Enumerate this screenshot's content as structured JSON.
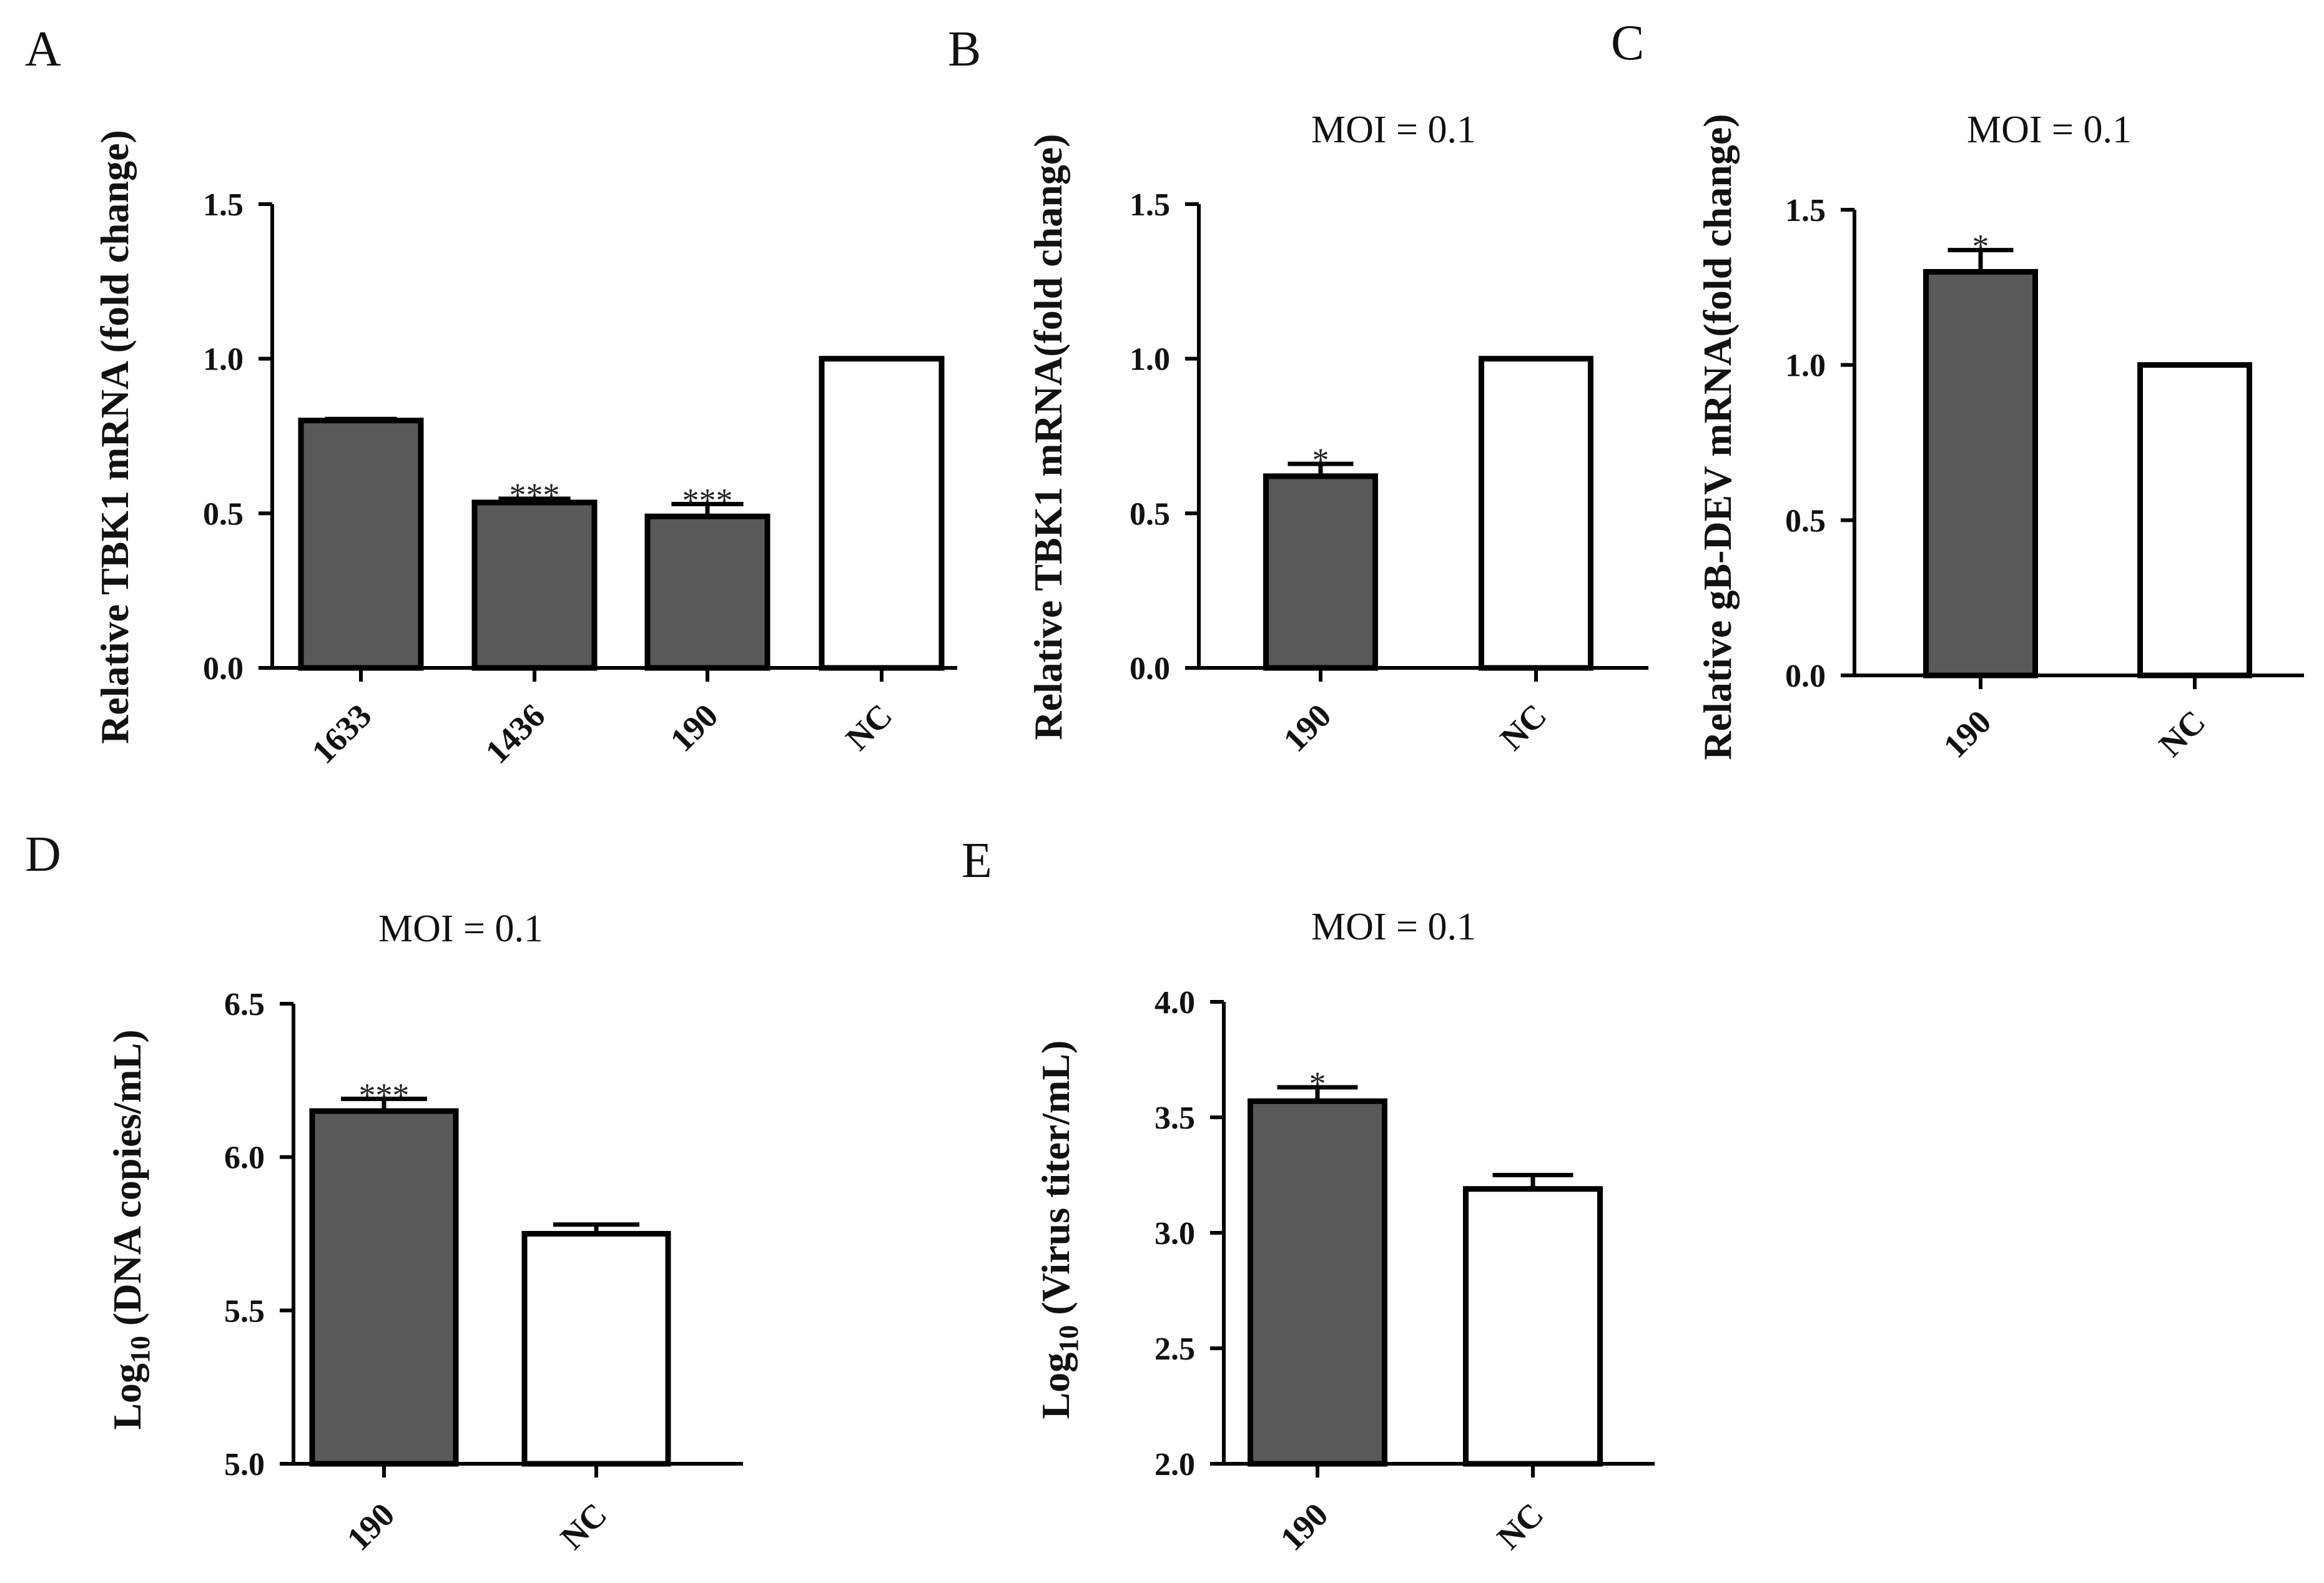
{
  "colors": {
    "filled": "#595959",
    "open": "#ffffff",
    "stroke": "#000000"
  },
  "chart_data": [
    {
      "panel": "A",
      "type": "bar",
      "title": "",
      "ylabel": "Relative TBK1 mRNA (fold change)",
      "ylim": [
        0,
        1.5
      ],
      "yticks": [
        "0.0",
        "0.5",
        "1.0",
        "1.5"
      ],
      "categories": [
        "1633",
        "1436",
        "190",
        "NC"
      ],
      "values": [
        0.8,
        0.535,
        0.49,
        1.0
      ],
      "errors": [
        0.005,
        0.012,
        0.04,
        0
      ],
      "fills": [
        "filled",
        "filled",
        "filled",
        "open"
      ],
      "annotations": [
        "",
        "***",
        "***",
        ""
      ]
    },
    {
      "panel": "B",
      "type": "bar",
      "title": "MOI = 0.1",
      "ylabel": "Relative TBK1 mRNA(fold change)",
      "ylim": [
        0,
        1.5
      ],
      "yticks": [
        "0.0",
        "0.5",
        "1.0",
        "1.5"
      ],
      "categories": [
        "190",
        "NC"
      ],
      "values": [
        0.62,
        1.0
      ],
      "errors": [
        0.04,
        0
      ],
      "fills": [
        "filled",
        "open"
      ],
      "annotations": [
        "*",
        ""
      ]
    },
    {
      "panel": "C",
      "type": "bar",
      "title": "MOI = 0.1",
      "ylabel": "Relative gB-DEV mRNA(fold change)",
      "ylim": [
        0,
        1.5
      ],
      "yticks": [
        "0.0",
        "0.5",
        "1.0",
        "1.5"
      ],
      "categories": [
        "190",
        "NC"
      ],
      "values": [
        1.3,
        1.0
      ],
      "errors": [
        0.07,
        0
      ],
      "fills": [
        "filled",
        "open"
      ],
      "annotations": [
        "*",
        ""
      ]
    },
    {
      "panel": "D",
      "type": "bar",
      "title": "MOI = 0.1",
      "ylabel_main": "Log",
      "ylabel_sub": "10",
      "ylabel_rest": " (DNA copies/mL)",
      "ylim": [
        5.0,
        6.5
      ],
      "yticks": [
        "5.0",
        "5.5",
        "6.0",
        "6.5"
      ],
      "categories": [
        "190",
        "NC"
      ],
      "values": [
        6.15,
        5.75
      ],
      "errors": [
        0.04,
        0.03
      ],
      "fills": [
        "filled",
        "open"
      ],
      "annotations": [
        "***",
        ""
      ]
    },
    {
      "panel": "E",
      "type": "bar",
      "title": "MOI = 0.1",
      "ylabel_main": "Log",
      "ylabel_sub": "10",
      "ylabel_rest": " (Virus titer/mL)",
      "ylim": [
        2.0,
        4.0
      ],
      "yticks": [
        "2.0",
        "2.5",
        "3.0",
        "3.5",
        "4.0"
      ],
      "categories": [
        "190",
        "NC"
      ],
      "values": [
        3.57,
        3.19
      ],
      "errors": [
        0.06,
        0.06
      ],
      "fills": [
        "filled",
        "open"
      ],
      "annotations": [
        "*",
        ""
      ]
    }
  ]
}
